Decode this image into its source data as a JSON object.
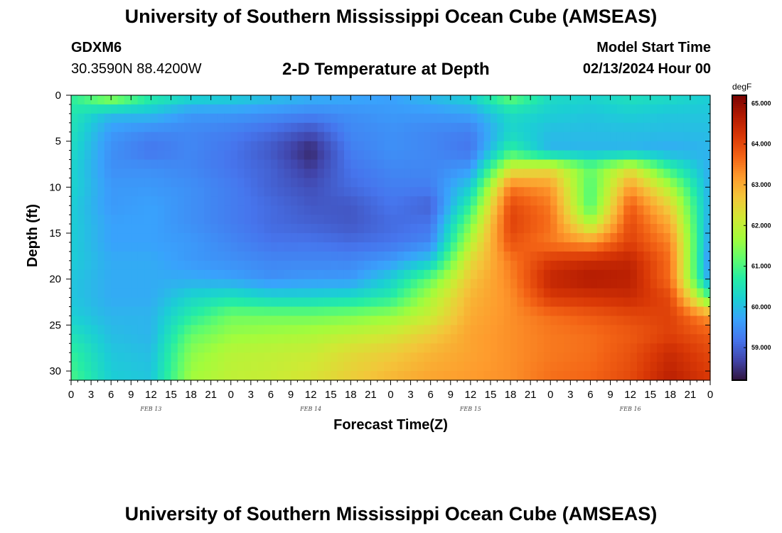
{
  "header": {
    "title": "University of Southern Mississippi Ocean Cube (AMSEAS)",
    "station_id": "GDXM6",
    "station_coords": "30.3590N  88.4200W",
    "chart_title": "2-D Temperature at Depth",
    "model_start_label": "Model Start Time",
    "model_start_value": "02/13/2024 Hour 00"
  },
  "footer": {
    "title": "University of Southern Mississippi Ocean Cube (AMSEAS)"
  },
  "chart_data": {
    "type": "heatmap",
    "title": "2-D Temperature at Depth",
    "xlabel": "Forecast Time(Z)",
    "ylabel": "Depth (ft)",
    "x_unit": "hours since 02/13/2024 00Z",
    "xlim": [
      0,
      96
    ],
    "ylim": [
      0,
      31
    ],
    "y_inverted": true,
    "x_tick_values": [
      0,
      3,
      6,
      9,
      12,
      15,
      18,
      21,
      24,
      27,
      30,
      33,
      36,
      39,
      42,
      45,
      48,
      51,
      54,
      57,
      60,
      63,
      66,
      69,
      72,
      75,
      78,
      81,
      84,
      87,
      90,
      93,
      96
    ],
    "x_tick_labels": [
      "0",
      "3",
      "6",
      "9",
      "12",
      "15",
      "18",
      "21",
      "0",
      "3",
      "6",
      "9",
      "12",
      "15",
      "18",
      "21",
      "0",
      "3",
      "6",
      "9",
      "12",
      "15",
      "18",
      "21",
      "0",
      "3",
      "6",
      "9",
      "12",
      "15",
      "18",
      "21",
      "0"
    ],
    "date_labels": [
      {
        "label": "FEB 13",
        "x": 12
      },
      {
        "label": "FEB 14",
        "x": 36
      },
      {
        "label": "FEB 15",
        "x": 60
      },
      {
        "label": "FEB 16",
        "x": 84
      }
    ],
    "y_tick_values": [
      0,
      5,
      10,
      15,
      20,
      25,
      30
    ],
    "y_tick_labels": [
      "0",
      "5",
      "10",
      "15",
      "20",
      "25",
      "30"
    ],
    "colorbar": {
      "unit": "degF",
      "range": [
        58.2,
        65.2
      ],
      "tick_values": [
        59,
        60,
        61,
        62,
        63,
        64,
        65
      ],
      "tick_labels": [
        "59.000",
        "60.000",
        "61.000",
        "62.000",
        "63.000",
        "64.000",
        "65.000"
      ],
      "colors": [
        "#30123b",
        "#4145ab",
        "#4675ed",
        "#39a2fc",
        "#1bcfd4",
        "#24eca6",
        "#61fc6c",
        "#a4fc3b",
        "#d1e834",
        "#f3c63a",
        "#fe9b2d",
        "#f36315",
        "#d93806",
        "#b11901",
        "#7a0402"
      ]
    },
    "depth_levels": [
      0,
      2,
      4,
      6,
      8,
      10,
      12,
      14,
      16,
      18,
      20,
      22,
      24,
      26,
      28,
      31
    ],
    "time_hours": [
      0,
      6,
      12,
      18,
      24,
      30,
      36,
      42,
      48,
      54,
      60,
      66,
      72,
      78,
      84,
      90,
      96
    ],
    "temperature_degF": [
      [
        60.8,
        61.8,
        60.8,
        60.4,
        60.3,
        60.1,
        59.9,
        59.8,
        59.7,
        60.0,
        60.3,
        61.3,
        60.4,
        60.3,
        60.5,
        60.4,
        60.2
      ],
      [
        60.6,
        60.0,
        60.0,
        59.6,
        59.6,
        59.5,
        59.4,
        59.5,
        59.6,
        59.6,
        59.7,
        60.4,
        60.2,
        60.1,
        60.2,
        60.1,
        60.1
      ],
      [
        60.5,
        59.6,
        59.4,
        59.4,
        59.3,
        59.1,
        58.8,
        59.4,
        59.5,
        59.4,
        59.3,
        60.3,
        60.0,
        60.0,
        60.0,
        60.0,
        60.0
      ],
      [
        60.4,
        59.5,
        59.2,
        59.4,
        59.2,
        58.9,
        58.4,
        59.3,
        59.5,
        59.4,
        59.2,
        60.8,
        59.9,
        59.9,
        59.9,
        59.8,
        59.9
      ],
      [
        60.3,
        59.5,
        59.5,
        59.4,
        59.2,
        59.0,
        58.6,
        59.2,
        59.4,
        59.4,
        59.6,
        62.2,
        62.4,
        61.2,
        62.3,
        60.8,
        59.8
      ],
      [
        60.3,
        59.6,
        59.6,
        59.5,
        59.3,
        59.0,
        58.8,
        59.1,
        59.3,
        59.3,
        60.2,
        63.5,
        63.2,
        61.0,
        63.2,
        61.8,
        59.8
      ],
      [
        60.2,
        59.6,
        59.7,
        59.5,
        59.3,
        59.1,
        58.9,
        58.9,
        59.2,
        59.0,
        60.8,
        64.0,
        63.5,
        61.0,
        63.8,
        62.5,
        59.8
      ],
      [
        60.2,
        59.7,
        59.7,
        59.5,
        59.3,
        59.1,
        59.0,
        58.9,
        59.1,
        59.2,
        61.4,
        64.1,
        63.6,
        61.8,
        64.0,
        63.0,
        59.7
      ],
      [
        60.2,
        59.7,
        59.7,
        59.6,
        59.4,
        59.2,
        59.2,
        59.1,
        59.2,
        59.4,
        61.9,
        63.9,
        63.5,
        63.2,
        64.1,
        63.4,
        59.6
      ],
      [
        60.2,
        59.8,
        59.8,
        59.6,
        59.5,
        59.4,
        59.4,
        59.4,
        59.6,
        60.1,
        62.4,
        63.5,
        64.2,
        64.4,
        64.5,
        63.6,
        59.4
      ],
      [
        60.1,
        59.8,
        59.8,
        59.8,
        59.7,
        59.5,
        59.6,
        59.6,
        60.2,
        61.2,
        62.7,
        63.4,
        64.5,
        64.7,
        64.6,
        63.6,
        59.6
      ],
      [
        60.1,
        59.8,
        59.8,
        60.3,
        60.5,
        60.3,
        60.3,
        60.4,
        60.7,
        61.8,
        62.9,
        63.3,
        64.2,
        64.3,
        64.4,
        64.0,
        61.0
      ],
      [
        60.2,
        59.9,
        59.9,
        60.7,
        61.3,
        61.3,
        61.3,
        61.4,
        61.6,
        62.1,
        63.0,
        63.3,
        63.6,
        63.8,
        64.0,
        64.1,
        63.2
      ],
      [
        60.5,
        60.0,
        59.9,
        61.2,
        61.6,
        61.7,
        61.8,
        62.0,
        62.2,
        62.6,
        63.1,
        63.3,
        63.5,
        63.6,
        63.8,
        64.1,
        63.8
      ],
      [
        60.8,
        60.1,
        60.0,
        61.5,
        61.9,
        62.0,
        62.1,
        62.4,
        62.6,
        62.9,
        63.1,
        63.3,
        63.5,
        63.6,
        63.9,
        64.4,
        64.0
      ],
      [
        61.0,
        60.2,
        60.1,
        61.7,
        62.0,
        62.1,
        62.3,
        62.6,
        62.9,
        63.1,
        63.2,
        63.3,
        63.6,
        63.7,
        64.0,
        64.6,
        64.2
      ]
    ]
  }
}
